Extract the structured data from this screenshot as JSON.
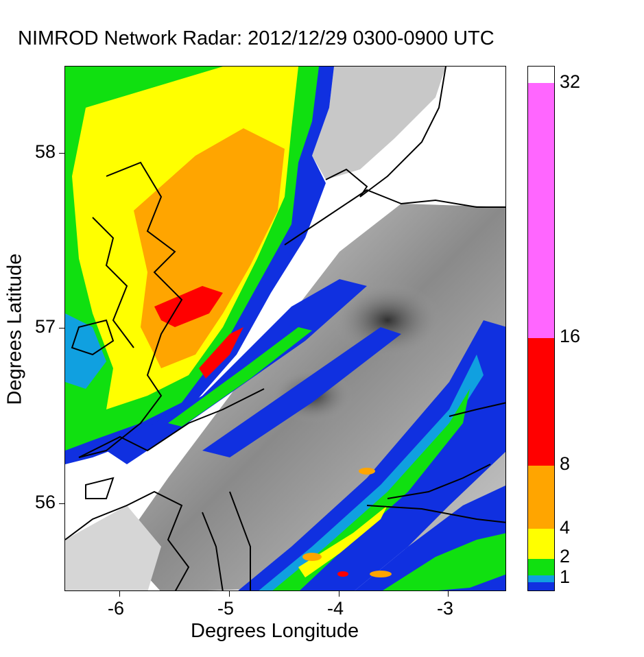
{
  "title": "NIMROD Network Radar: 2012/12/29 0300-0900 UTC",
  "xlabel": "Degrees Longitude",
  "ylabel": "Degrees Latitude",
  "x_ticks": [
    "-6",
    "-5",
    "-4",
    "-3"
  ],
  "y_ticks": [
    "58",
    "57",
    "56"
  ],
  "x_range": [
    -6.5,
    -2.5
  ],
  "y_range": [
    55.5,
    58.5
  ],
  "colorbar": {
    "unit_scale": "mm",
    "labels": [
      "1",
      "2",
      "4",
      "8",
      "16",
      "32"
    ],
    "segments": [
      {
        "from": 0,
        "to": 0.5,
        "color": "#1030e0"
      },
      {
        "from": 0.5,
        "to": 1,
        "color": "#10a0e0"
      },
      {
        "from": 1,
        "to": 2,
        "color": "#10e010"
      },
      {
        "from": 2,
        "to": 4,
        "color": "#ffff00"
      },
      {
        "from": 4,
        "to": 8,
        "color": "#ffa500"
      },
      {
        "from": 8,
        "to": 16,
        "color": "#ff0000"
      },
      {
        "from": 16,
        "to": 32,
        "color": "#ff66ff"
      },
      {
        "from": 32,
        "to": 33,
        "color": "#ffffff"
      }
    ]
  },
  "colors": {
    "blue": "#1030e0",
    "cyan": "#10a0e0",
    "green": "#10e010",
    "yellow": "#ffff00",
    "orange": "#ffa500",
    "red": "#ff0000",
    "magenta": "#ff66ff",
    "terrain_light": "#d8d8d8",
    "terrain_dark": "#404040"
  }
}
